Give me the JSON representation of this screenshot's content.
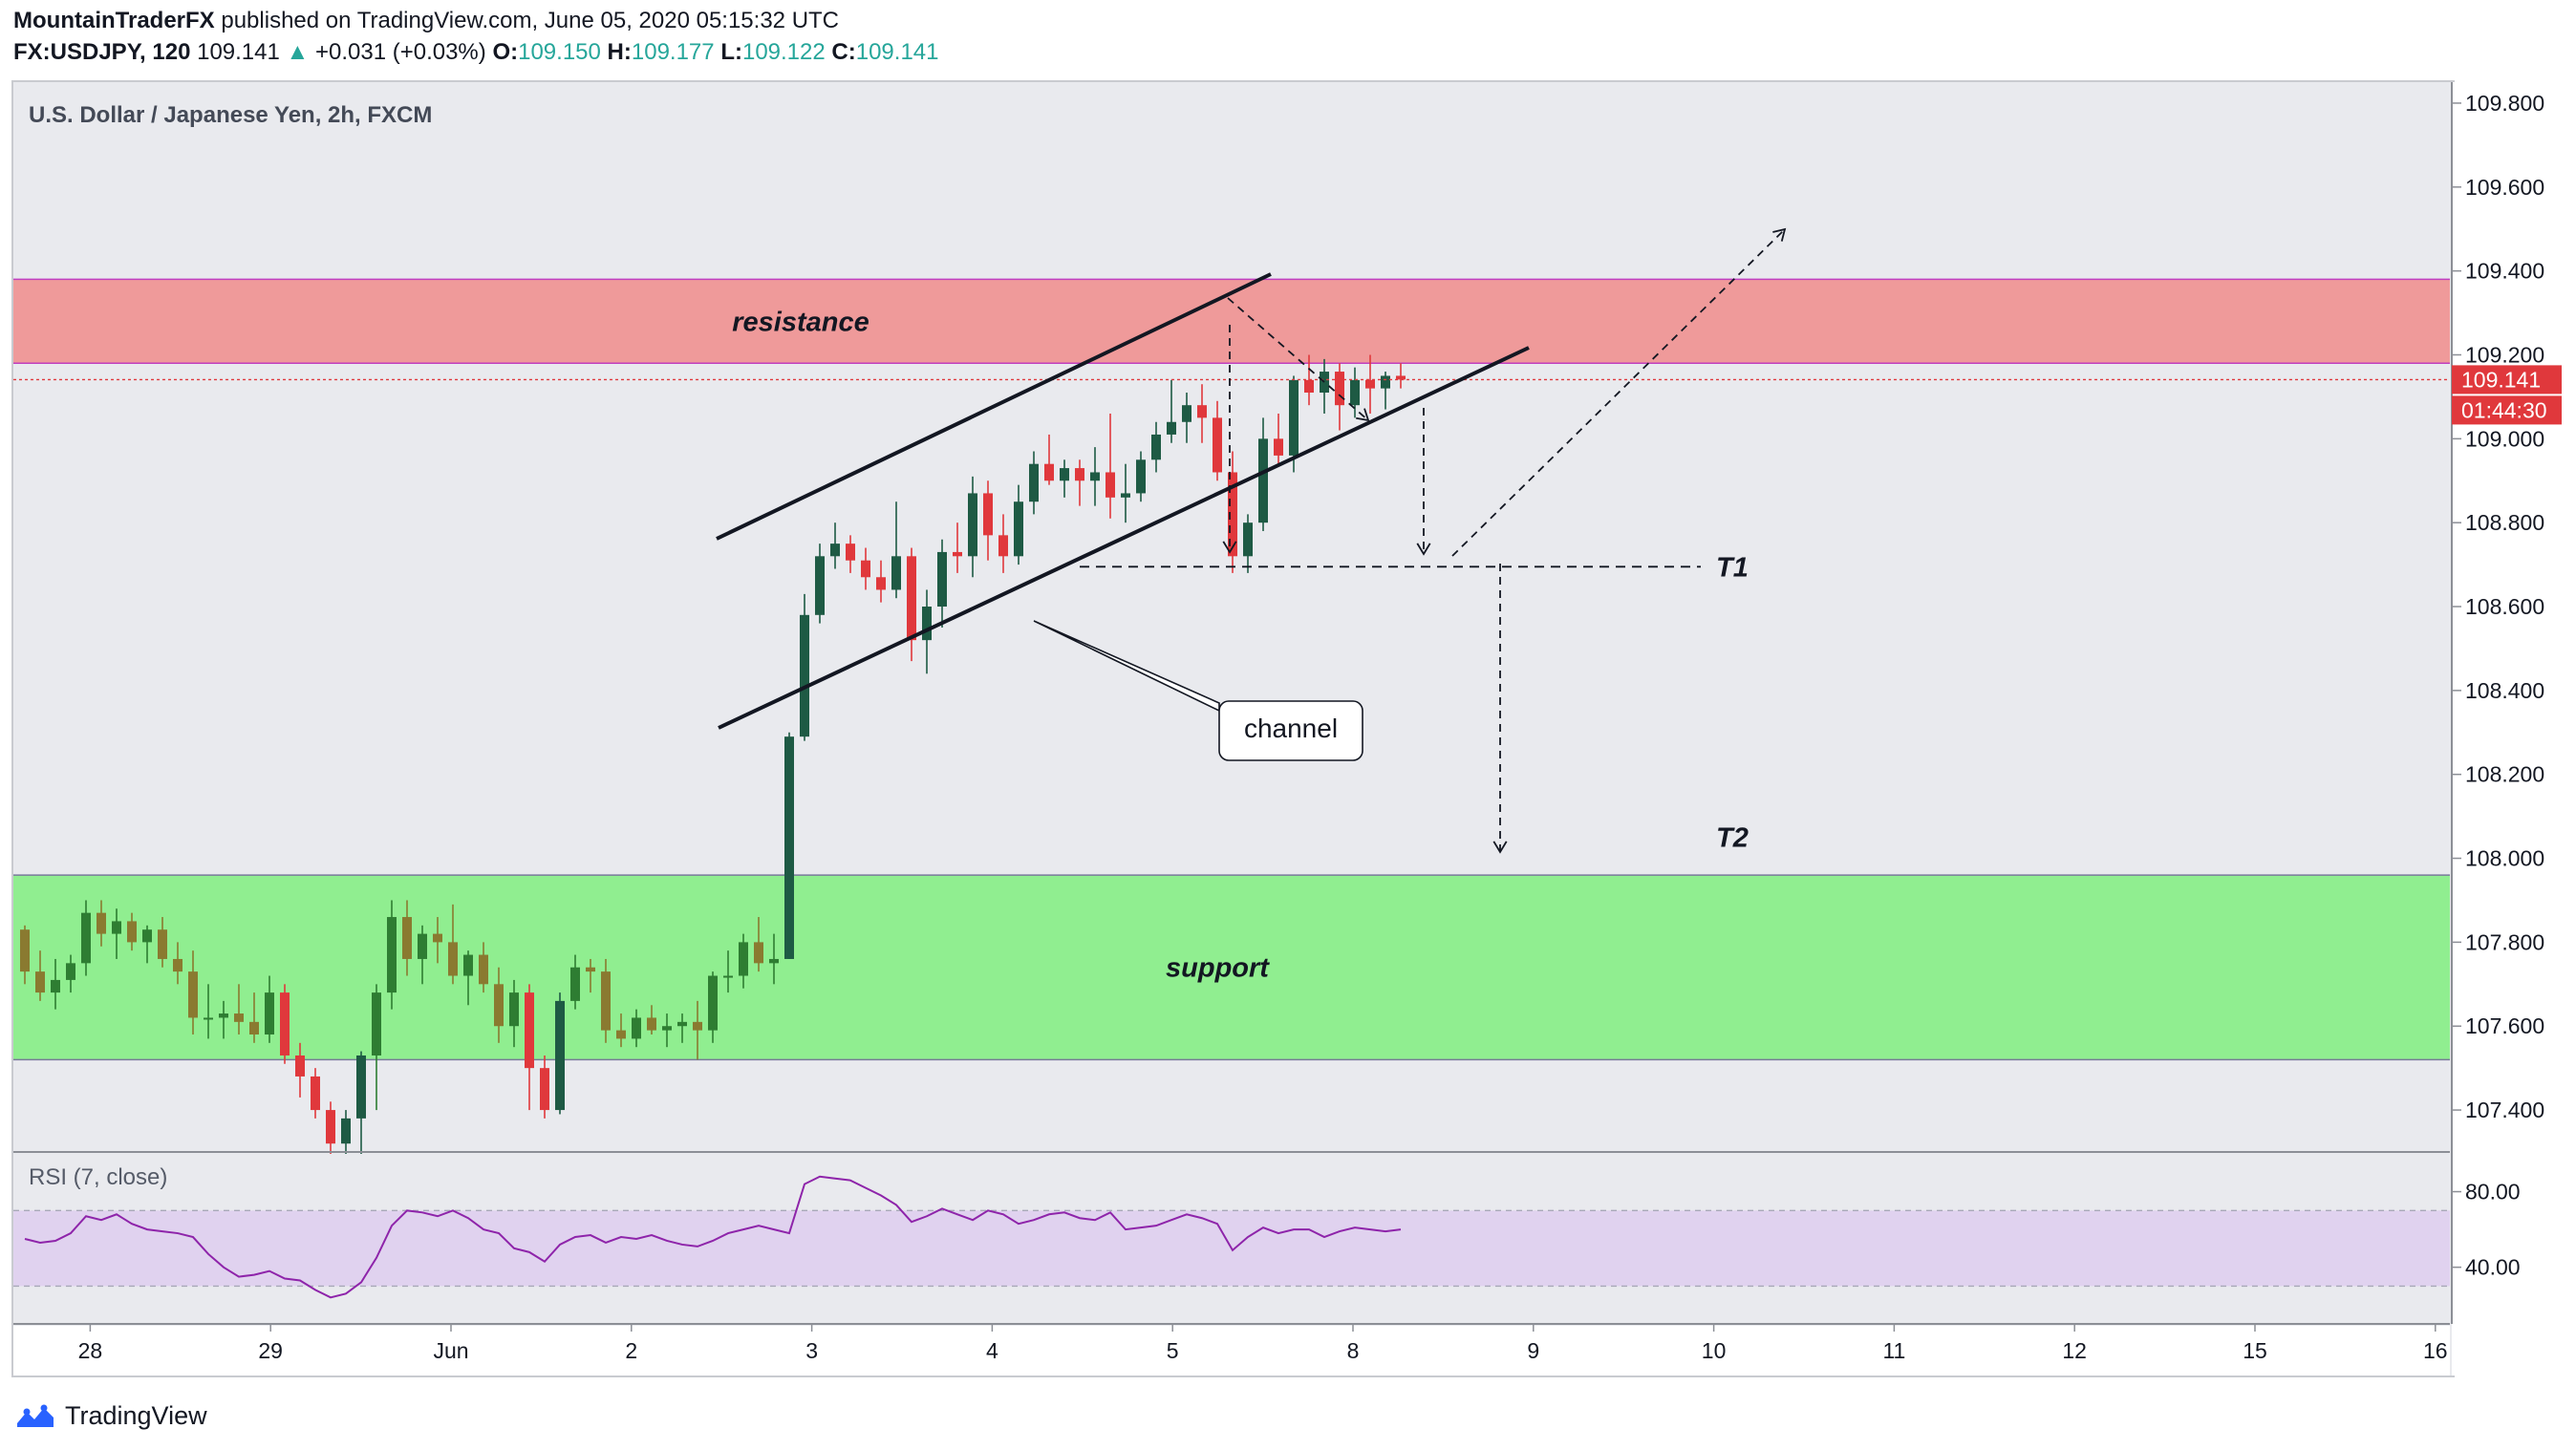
{
  "header": {
    "author": "MountainTraderFX",
    "published": "published on TradingView.com, June 05, 2020 05:15:32 UTC",
    "symbol": "FX:USDJPY, 120",
    "last": "109.141",
    "change_arrow": "▲",
    "change": "+0.031 (+0.03%)",
    "o_label": "O:",
    "o_value": "109.150",
    "h_label": "H:",
    "h_value": "109.177",
    "l_label": "L:",
    "l_value": "109.122",
    "c_label": "C:",
    "c_value": "109.141"
  },
  "footer": {
    "brand": "TradingView"
  },
  "colors": {
    "up": "#1e5a44",
    "down": "#e0383c",
    "olive_up": "#2e7d32",
    "olive_down": "#8a7a30",
    "resistance": "#ef9a9a",
    "support": "#90ee90",
    "rsi_band": "#e0d2ef",
    "rsi_line": "#8e24aa",
    "price_tag": "#e0383c"
  },
  "chart_data": {
    "type": "candlestick",
    "title": "U.S. Dollar / Japanese Yen, 2h, FXCM",
    "ylim": [
      107.3,
      109.85
    ],
    "y_ticks": [
      "109.800",
      "109.600",
      "109.400",
      "109.200",
      "109.000",
      "108.800",
      "108.600",
      "108.400",
      "108.200",
      "108.000",
      "107.800",
      "107.600",
      "107.400"
    ],
    "x_ticks": [
      {
        "label": "28",
        "t": 0.4
      },
      {
        "label": "29",
        "t": 12.2
      },
      {
        "label": "Jun",
        "t": 24.0
      },
      {
        "label": "2",
        "t": 35.8
      },
      {
        "label": "3",
        "t": 47.6
      },
      {
        "label": "4",
        "t": 59.4
      },
      {
        "label": "5",
        "t": 71.2
      },
      {
        "label": "8",
        "t": 83.0
      },
      {
        "label": "9",
        "t": 94.8
      },
      {
        "label": "10",
        "t": 106.6
      },
      {
        "label": "11",
        "t": 118.4
      },
      {
        "label": "12",
        "t": 130.2
      },
      {
        "label": "15",
        "t": 142.0
      },
      {
        "label": "16",
        "t": 153.8
      }
    ],
    "last_price": "109.141",
    "countdown": "01:44:30",
    "zones": [
      {
        "name": "resistance",
        "label": "resistance",
        "top": 109.38,
        "bottom": 109.18
      },
      {
        "name": "support",
        "label": "support",
        "top": 107.96,
        "bottom": 107.52
      }
    ],
    "target_labels": [
      {
        "label": "T1",
        "value": 108.695
      },
      {
        "label": "T2",
        "value": 108.05
      }
    ],
    "channel_label": "channel",
    "candles": [
      [
        107.83,
        107.84,
        107.7,
        107.73
      ],
      [
        107.73,
        107.78,
        107.66,
        107.68
      ],
      [
        107.68,
        107.76,
        107.64,
        107.71
      ],
      [
        107.71,
        107.77,
        107.68,
        107.75
      ],
      [
        107.75,
        107.9,
        107.72,
        107.87
      ],
      [
        107.87,
        107.9,
        107.79,
        107.82
      ],
      [
        107.82,
        107.88,
        107.76,
        107.85
      ],
      [
        107.85,
        107.87,
        107.78,
        107.8
      ],
      [
        107.8,
        107.84,
        107.75,
        107.83
      ],
      [
        107.83,
        107.86,
        107.74,
        107.76
      ],
      [
        107.76,
        107.8,
        107.7,
        107.73
      ],
      [
        107.73,
        107.78,
        107.58,
        107.62
      ],
      [
        107.62,
        107.7,
        107.57,
        107.62
      ],
      [
        107.62,
        107.66,
        107.57,
        107.63
      ],
      [
        107.63,
        107.7,
        107.58,
        107.61
      ],
      [
        107.61,
        107.68,
        107.56,
        107.58
      ],
      [
        107.58,
        107.72,
        107.56,
        107.68
      ],
      [
        107.68,
        107.7,
        107.51,
        107.53
      ],
      [
        107.53,
        107.56,
        107.43,
        107.48
      ],
      [
        107.48,
        107.5,
        107.38,
        107.4
      ],
      [
        107.4,
        107.42,
        107.28,
        107.32
      ],
      [
        107.32,
        107.4,
        107.27,
        107.38
      ],
      [
        107.38,
        107.54,
        107.28,
        107.53
      ],
      [
        107.53,
        107.7,
        107.4,
        107.68
      ],
      [
        107.68,
        107.9,
        107.64,
        107.86
      ],
      [
        107.86,
        107.9,
        107.72,
        107.76
      ],
      [
        107.76,
        107.84,
        107.7,
        107.82
      ],
      [
        107.82,
        107.86,
        107.75,
        107.8
      ],
      [
        107.8,
        107.89,
        107.7,
        107.72
      ],
      [
        107.72,
        107.78,
        107.65,
        107.77
      ],
      [
        107.77,
        107.8,
        107.68,
        107.7
      ],
      [
        107.7,
        107.74,
        107.56,
        107.6
      ],
      [
        107.6,
        107.71,
        107.55,
        107.68
      ],
      [
        107.68,
        107.7,
        107.4,
        107.5
      ],
      [
        107.5,
        107.53,
        107.38,
        107.4
      ],
      [
        107.4,
        107.68,
        107.39,
        107.66
      ],
      [
        107.66,
        107.77,
        107.64,
        107.74
      ],
      [
        107.74,
        107.76,
        107.68,
        107.73
      ],
      [
        107.73,
        107.76,
        107.56,
        107.59
      ],
      [
        107.59,
        107.63,
        107.55,
        107.57
      ],
      [
        107.57,
        107.64,
        107.55,
        107.62
      ],
      [
        107.62,
        107.65,
        107.58,
        107.59
      ],
      [
        107.59,
        107.63,
        107.55,
        107.6
      ],
      [
        107.6,
        107.63,
        107.56,
        107.61
      ],
      [
        107.61,
        107.66,
        107.52,
        107.59
      ],
      [
        107.59,
        107.73,
        107.56,
        107.72
      ],
      [
        107.72,
        107.78,
        107.68,
        107.72
      ],
      [
        107.72,
        107.82,
        107.69,
        107.8
      ],
      [
        107.8,
        107.86,
        107.73,
        107.75
      ],
      [
        107.75,
        107.82,
        107.7,
        107.76
      ],
      [
        107.76,
        108.3,
        107.76,
        108.29
      ],
      [
        108.29,
        108.63,
        108.28,
        108.58
      ],
      [
        108.58,
        108.75,
        108.56,
        108.72
      ],
      [
        108.72,
        108.8,
        108.69,
        108.75
      ],
      [
        108.75,
        108.77,
        108.68,
        108.71
      ],
      [
        108.71,
        108.74,
        108.64,
        108.67
      ],
      [
        108.67,
        108.71,
        108.61,
        108.64
      ],
      [
        108.64,
        108.85,
        108.62,
        108.72
      ],
      [
        108.72,
        108.74,
        108.47,
        108.52
      ],
      [
        108.52,
        108.64,
        108.44,
        108.6
      ],
      [
        108.6,
        108.76,
        108.55,
        108.73
      ],
      [
        108.73,
        108.8,
        108.68,
        108.72
      ],
      [
        108.72,
        108.91,
        108.67,
        108.87
      ],
      [
        108.87,
        108.9,
        108.71,
        108.77
      ],
      [
        108.77,
        108.82,
        108.68,
        108.72
      ],
      [
        108.72,
        108.89,
        108.7,
        108.85
      ],
      [
        108.85,
        108.97,
        108.82,
        108.94
      ],
      [
        108.94,
        109.01,
        108.89,
        108.9
      ],
      [
        108.9,
        108.95,
        108.86,
        108.93
      ],
      [
        108.93,
        108.95,
        108.84,
        108.9
      ],
      [
        108.9,
        108.98,
        108.84,
        108.92
      ],
      [
        108.92,
        109.06,
        108.81,
        108.86
      ],
      [
        108.86,
        108.94,
        108.8,
        108.87
      ],
      [
        108.87,
        108.97,
        108.85,
        108.95
      ],
      [
        108.95,
        109.04,
        108.92,
        109.01
      ],
      [
        109.01,
        109.14,
        108.99,
        109.04
      ],
      [
        109.04,
        109.11,
        108.99,
        109.08
      ],
      [
        109.08,
        109.13,
        108.99,
        109.05
      ],
      [
        109.05,
        109.09,
        108.9,
        108.92
      ],
      [
        108.92,
        108.97,
        108.68,
        108.72
      ],
      [
        108.72,
        108.82,
        108.68,
        108.8
      ],
      [
        108.8,
        109.05,
        108.78,
        109.0
      ],
      [
        109.0,
        109.06,
        108.94,
        108.96
      ],
      [
        108.96,
        109.15,
        108.92,
        109.14
      ],
      [
        109.14,
        109.2,
        109.08,
        109.11
      ],
      [
        109.11,
        109.19,
        109.06,
        109.16
      ],
      [
        109.16,
        109.18,
        109.02,
        109.08
      ],
      [
        109.08,
        109.17,
        109.05,
        109.14
      ],
      [
        109.14,
        109.2,
        109.06,
        109.12
      ],
      [
        109.12,
        109.16,
        109.07,
        109.15
      ],
      [
        109.15,
        109.18,
        109.12,
        109.141
      ]
    ],
    "rsi": {
      "label": "RSI (7, close)",
      "ylim": [
        10,
        100
      ],
      "ticks": [
        "80.00",
        "40.00"
      ],
      "band": [
        30,
        70
      ],
      "values": [
        55,
        53,
        54,
        58,
        67,
        65,
        68,
        63,
        60,
        59,
        58,
        56,
        47,
        40,
        35,
        36,
        38,
        34,
        33,
        28,
        24,
        26,
        32,
        45,
        62,
        70,
        69,
        67,
        70,
        66,
        60,
        58,
        50,
        48,
        43,
        52,
        56,
        57,
        53,
        56,
        55,
        57,
        54,
        52,
        51,
        54,
        58,
        60,
        62,
        60,
        58,
        84,
        88,
        87,
        86,
        82,
        78,
        73,
        64,
        67,
        71,
        68,
        65,
        70,
        68,
        63,
        65,
        68,
        69,
        66,
        65,
        69,
        60,
        61,
        62,
        65,
        68,
        66,
        63,
        49,
        56,
        61,
        58,
        60,
        60,
        56,
        59,
        61,
        60,
        59,
        60
      ]
    }
  }
}
